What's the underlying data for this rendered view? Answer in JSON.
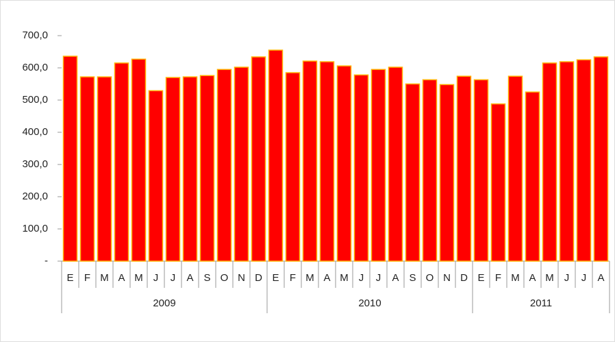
{
  "chart_data": {
    "type": "bar",
    "color": "#ff0000",
    "edge_color": "#ffb000",
    "ylim": [
      0,
      700
    ],
    "yticks": [
      {
        "value": 0,
        "label": "-"
      },
      {
        "value": 100,
        "label": "100,0"
      },
      {
        "value": 200,
        "label": "200,0"
      },
      {
        "value": 300,
        "label": "300,0"
      },
      {
        "value": 400,
        "label": "400,0"
      },
      {
        "value": 500,
        "label": "500,0"
      },
      {
        "value": 600,
        "label": "600,0"
      },
      {
        "value": 700,
        "label": "700,0"
      }
    ],
    "groups": [
      {
        "label": "2009",
        "categories": [
          "E",
          "F",
          "M",
          "A",
          "M",
          "J",
          "J",
          "A",
          "S",
          "O",
          "N",
          "D"
        ],
        "values": [
          636,
          572,
          572,
          615,
          627,
          529,
          570,
          572,
          576,
          595,
          602,
          634
        ]
      },
      {
        "label": "2010",
        "categories": [
          "E",
          "F",
          "M",
          "A",
          "M",
          "J",
          "J",
          "A",
          "S",
          "O",
          "N",
          "D"
        ],
        "values": [
          655,
          585,
          621,
          619,
          606,
          578,
          595,
          602,
          550,
          563,
          548,
          574
        ]
      },
      {
        "label": "2011",
        "categories": [
          "E",
          "F",
          "M",
          "A",
          "M",
          "J",
          "J",
          "A"
        ],
        "values": [
          563,
          488,
          574,
          525,
          615,
          619,
          625,
          634
        ]
      }
    ]
  }
}
